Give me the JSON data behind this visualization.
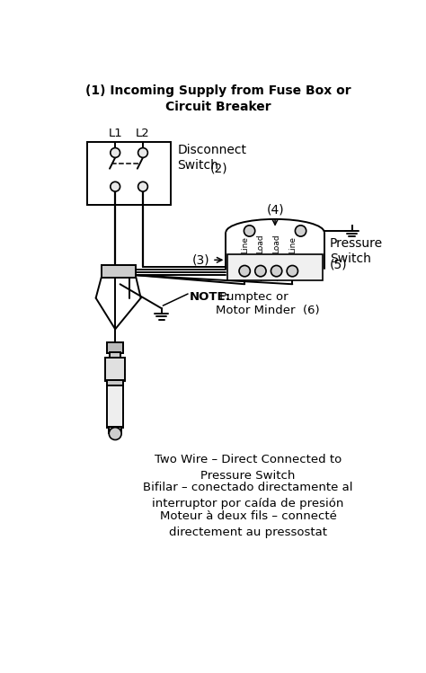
{
  "bg_color": "#ffffff",
  "line_color": "#000000",
  "labels": {
    "title": "(1) Incoming Supply from Fuse Box or\nCircuit Breaker",
    "L1": "L1",
    "L2": "L2",
    "disconnect": "Disconnect\nSwitch",
    "disconnect_num": "(2)",
    "num3": "(3)",
    "num4": "(4)",
    "pressure": "Pressure\nSwitch",
    "pressure_num": "(5)",
    "note_bold": "NOTE:",
    "note_rest": " Pumptec or\nMotor Minder  (6)",
    "line1": "Line",
    "load1": "Load",
    "load2": "Load",
    "line2": "Line",
    "text1": "Two Wire – Direct Connected to\nPressure Switch",
    "text2": "Bifilar – conectado directamente al\ninterruptor por caída de presión",
    "text3": "Moteur à deux fils – connecté\ndirectement au pressostat"
  },
  "figsize": [
    4.74,
    7.49
  ],
  "dpi": 100
}
